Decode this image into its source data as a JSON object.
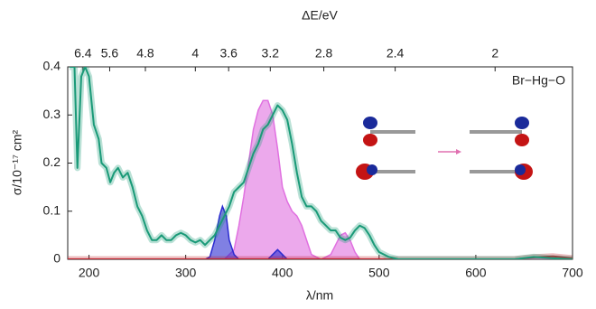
{
  "chart_data": {
    "type": "line",
    "xlabel": "λ/nm",
    "ylabel": "σ/10⁻¹⁷ cm²",
    "x2label": "ΔE/eV",
    "annotation": "Br−Hg−O",
    "xlim": [
      178,
      700
    ],
    "ylim": [
      0,
      0.4
    ],
    "xticks": [
      200,
      300,
      400,
      500,
      600,
      700
    ],
    "yticks": [
      0,
      0.1,
      0.2,
      0.3,
      0.4
    ],
    "x2ticks": [
      6.4,
      5.6,
      4.8,
      4,
      3.6,
      3.2,
      2.8,
      2.4,
      2
    ],
    "series": [
      {
        "color": "#e070e0",
        "fill": true,
        "x": [
          340,
          350,
          355,
          360,
          365,
          370,
          375,
          380,
          385,
          390,
          395,
          400,
          405,
          410,
          415,
          420,
          425,
          430,
          440,
          450,
          455,
          460,
          465,
          470,
          475,
          480,
          700
        ],
        "values": [
          0,
          0.02,
          0.07,
          0.13,
          0.2,
          0.27,
          0.31,
          0.33,
          0.33,
          0.3,
          0.23,
          0.15,
          0.12,
          0.1,
          0.09,
          0.07,
          0.04,
          0.01,
          0,
          0.01,
          0.03,
          0.05,
          0.055,
          0.04,
          0.015,
          0,
          0
        ]
      },
      {
        "color": "#2b2bd0",
        "fill": true,
        "x": [
          320,
          325,
          330,
          335,
          338,
          342,
          345,
          350,
          355,
          385,
          390,
          395,
          400,
          405
        ],
        "values": [
          0,
          0.005,
          0.04,
          0.09,
          0.11,
          0.09,
          0.04,
          0.01,
          0,
          0,
          0.01,
          0.02,
          0.01,
          0
        ]
      },
      {
        "color": "#c0202a",
        "fill": false,
        "x": [
          178,
          600,
          640,
          660,
          680,
          700
        ],
        "values": [
          0,
          0,
          0,
          0.004,
          0.006,
          0.002
        ]
      },
      {
        "color": "#1a9a78",
        "fill": false,
        "x": [
          180,
          185,
          188,
          192,
          196,
          200,
          205,
          210,
          213,
          218,
          222,
          226,
          230,
          235,
          240,
          245,
          250,
          255,
          260,
          265,
          270,
          275,
          280,
          285,
          290,
          295,
          300,
          305,
          310,
          315,
          320,
          325,
          330,
          335,
          340,
          345,
          350,
          355,
          360,
          365,
          370,
          375,
          380,
          385,
          390,
          395,
          400,
          405,
          410,
          415,
          420,
          425,
          430,
          435,
          440,
          445,
          450,
          455,
          460,
          465,
          470,
          475,
          480,
          485,
          490,
          495,
          500,
          510,
          520,
          640,
          660,
          680,
          700
        ],
        "values": [
          0.4,
          0.4,
          0.19,
          0.38,
          0.4,
          0.38,
          0.28,
          0.25,
          0.2,
          0.19,
          0.16,
          0.18,
          0.19,
          0.17,
          0.18,
          0.15,
          0.11,
          0.09,
          0.06,
          0.04,
          0.04,
          0.05,
          0.04,
          0.04,
          0.05,
          0.055,
          0.05,
          0.04,
          0.035,
          0.04,
          0.03,
          0.04,
          0.05,
          0.07,
          0.09,
          0.11,
          0.14,
          0.15,
          0.16,
          0.19,
          0.22,
          0.24,
          0.27,
          0.28,
          0.3,
          0.32,
          0.31,
          0.29,
          0.24,
          0.18,
          0.13,
          0.11,
          0.11,
          0.1,
          0.08,
          0.07,
          0.06,
          0.06,
          0.045,
          0.04,
          0.045,
          0.06,
          0.07,
          0.065,
          0.05,
          0.03,
          0.015,
          0.005,
          0,
          0,
          0.005,
          0.002,
          0
        ]
      }
    ]
  }
}
